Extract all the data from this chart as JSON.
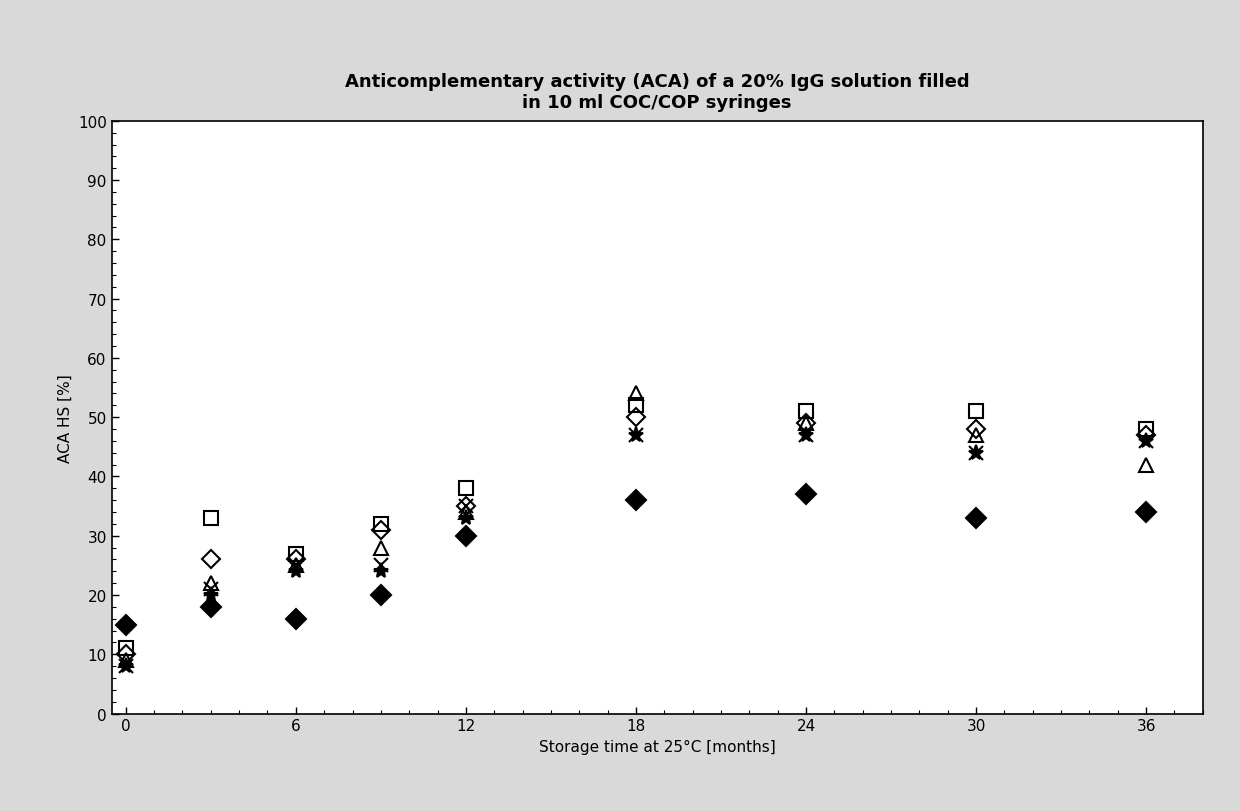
{
  "title_line1": "Anticomplementary activity (ACA) of a 20% IgG solution filled",
  "title_line2": "in 10 ml COC/COP syringes",
  "xlabel": "Storage time at 25°C [months]",
  "ylabel": "ACA HS [%]",
  "xlim": [
    -0.5,
    38
  ],
  "ylim": [
    0,
    100
  ],
  "xticks": [
    0,
    6,
    12,
    18,
    24,
    30,
    36
  ],
  "yticks": [
    0,
    10,
    20,
    30,
    40,
    50,
    60,
    70,
    80,
    90,
    100
  ],
  "series": {
    "square_open": {
      "x": [
        0,
        3,
        6,
        9,
        12,
        18,
        24,
        30,
        36
      ],
      "y": [
        11,
        33,
        27,
        32,
        38,
        52,
        51,
        51,
        48
      ],
      "marker": "s",
      "fillstyle": "none",
      "markersize": 10
    },
    "diamond_open": {
      "x": [
        0,
        3,
        6,
        9,
        12,
        18,
        24,
        30,
        36
      ],
      "y": [
        10,
        26,
        26,
        31,
        35,
        50,
        49,
        48,
        47
      ],
      "marker": "D",
      "fillstyle": "none",
      "markersize": 9
    },
    "triangle_open": {
      "x": [
        0,
        3,
        6,
        9,
        12,
        18,
        24,
        30,
        36
      ],
      "y": [
        9,
        22,
        25,
        28,
        34,
        54,
        49,
        47,
        42
      ],
      "marker": "^",
      "fillstyle": "none",
      "markersize": 10
    },
    "cross_x": {
      "x": [
        0,
        3,
        6,
        9,
        12,
        18,
        24,
        30,
        36
      ],
      "y": [
        8,
        21,
        25,
        25,
        35,
        47,
        47,
        44,
        46
      ],
      "marker": "x",
      "fillstyle": "full",
      "markersize": 10
    },
    "asterisk": {
      "x": [
        0,
        3,
        6,
        9,
        12,
        18,
        24,
        30,
        36
      ],
      "y": [
        8,
        20,
        24,
        24,
        33,
        47,
        47,
        44,
        46
      ],
      "marker": "*",
      "fillstyle": "full",
      "markersize": 11
    },
    "diamond_filled": {
      "x": [
        0,
        3,
        6,
        9,
        12,
        18,
        24,
        30,
        36
      ],
      "y": [
        15,
        18,
        16,
        20,
        30,
        36,
        37,
        33,
        34
      ],
      "marker": "D",
      "fillstyle": "full",
      "markersize": 10
    }
  },
  "background_color": "#d9d9d9",
  "plot_bg_color": "#ffffff",
  "title_fontsize": 13,
  "axis_label_fontsize": 11,
  "tick_fontsize": 11,
  "marker_color": "black",
  "markeredgewidth": 1.5
}
